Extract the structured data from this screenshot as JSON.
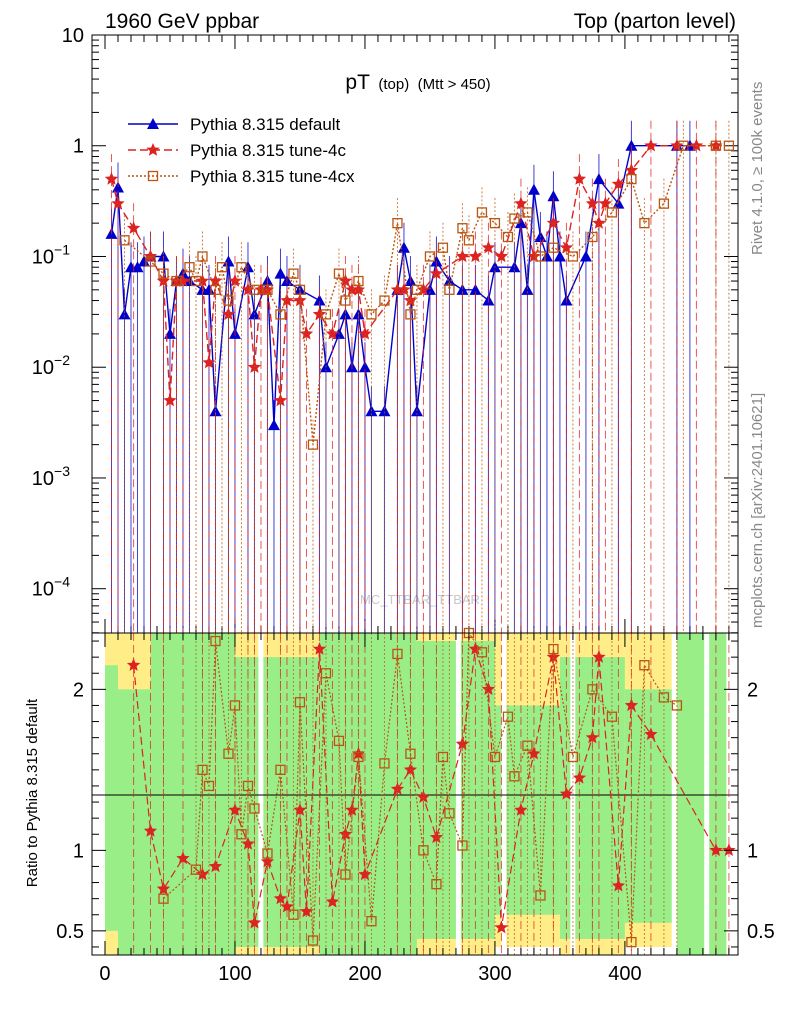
{
  "header": {
    "left": "1960 GeV ppbar",
    "right": "Top (parton level)"
  },
  "side_labels": {
    "rivet": "Rivet 4.1.0, ≥ 100k events",
    "mcplots": "mcplots.cern.ch [arXiv:2401.10621]"
  },
  "watermark": "MC_TTBAR_TTBAR",
  "chart_data": {
    "type": "line",
    "title": "pT",
    "title_parts": {
      "main": "pT",
      "sub": "(top)",
      "cut": "(Mtt > 450)"
    },
    "xlabel": "",
    "ylabel_ratio": "Ratio to Pythia 8.315 default",
    "xlim": [
      -10,
      487
    ],
    "ylim_main_log10": [
      -4.4,
      1.0
    ],
    "ylim_ratio": [
      0.35,
      2.35
    ],
    "x_ticks": [
      "0",
      "100",
      "200",
      "300",
      "400"
    ],
    "y_ticks_main": [
      "10^-4",
      "10^-3",
      "10^-2",
      "10^-1",
      "1",
      "10"
    ],
    "y_ticks_ratio": [
      "0.5",
      "1",
      "2"
    ],
    "legend": [
      {
        "name": "Pythia 8.315 default",
        "color": "#0000cc",
        "style": "solid",
        "marker": "triangle"
      },
      {
        "name": "Pythia 8.315 tune-4c",
        "color": "#dd2222",
        "style": "dashed",
        "marker": "star"
      },
      {
        "name": "Pythia 8.315 tune-4cx",
        "color": "#bb5511",
        "style": "dotted",
        "marker": "square"
      }
    ],
    "series": [
      {
        "name": "Pythia 8.315 default",
        "x": [
          5,
          10,
          15,
          20,
          25,
          30,
          35,
          45,
          50,
          55,
          60,
          65,
          75,
          80,
          85,
          95,
          100,
          110,
          115,
          125,
          130,
          135,
          140,
          150,
          165,
          170,
          180,
          185,
          190,
          195,
          200,
          205,
          215,
          225,
          230,
          235,
          240,
          250,
          255,
          265,
          275,
          285,
          295,
          300,
          315,
          320,
          325,
          330,
          335,
          340,
          345,
          350,
          355,
          370,
          380,
          395,
          405,
          440,
          450
        ],
        "y": [
          0.16,
          0.42,
          0.03,
          0.08,
          0.08,
          0.09,
          0.1,
          0.1,
          0.02,
          0.06,
          0.07,
          0.06,
          0.05,
          0.05,
          0.004,
          0.09,
          0.02,
          0.08,
          0.03,
          0.06,
          0.003,
          0.07,
          0.06,
          0.05,
          0.04,
          0.01,
          0.02,
          0.03,
          0.01,
          0.03,
          0.01,
          0.004,
          0.004,
          0.05,
          0.12,
          0.06,
          0.004,
          0.05,
          0.09,
          0.06,
          0.05,
          0.05,
          0.04,
          0.08,
          0.08,
          0.2,
          0.05,
          0.4,
          0.15,
          0.1,
          0.35,
          0.1,
          0.04,
          0.1,
          0.5,
          0.3,
          1.0,
          1.0,
          1.0
        ]
      },
      {
        "name": "Pythia 8.315 tune-4c",
        "x": [
          5,
          10,
          22,
          35,
          45,
          50,
          55,
          60,
          75,
          80,
          85,
          95,
          100,
          110,
          115,
          120,
          125,
          135,
          140,
          150,
          155,
          165,
          175,
          185,
          190,
          195,
          200,
          225,
          230,
          235,
          245,
          255,
          275,
          285,
          295,
          305,
          320,
          330,
          345,
          355,
          365,
          375,
          380,
          385,
          395,
          405,
          420,
          440,
          455,
          470
        ],
        "y": [
          0.5,
          0.3,
          0.18,
          0.1,
          0.06,
          0.005,
          0.06,
          0.06,
          0.06,
          0.011,
          0.06,
          0.03,
          0.06,
          0.05,
          0.01,
          0.05,
          0.05,
          0.005,
          0.04,
          0.04,
          0.02,
          0.03,
          0.02,
          0.06,
          0.05,
          0.05,
          0.02,
          0.05,
          0.05,
          0.04,
          0.05,
          0.07,
          0.1,
          0.1,
          0.12,
          0.1,
          0.3,
          0.1,
          0.2,
          0.12,
          0.5,
          0.3,
          0.2,
          0.3,
          0.45,
          0.6,
          1.0,
          1.0,
          1.0,
          1.0
        ]
      },
      {
        "name": "Pythia 8.315 tune-4cx",
        "x": [
          15,
          35,
          45,
          55,
          65,
          70,
          75,
          85,
          90,
          95,
          105,
          115,
          125,
          135,
          145,
          150,
          160,
          170,
          180,
          185,
          195,
          205,
          215,
          225,
          235,
          240,
          250,
          260,
          265,
          275,
          280,
          290,
          300,
          310,
          315,
          325,
          335,
          345,
          360,
          375,
          390,
          405,
          415,
          430,
          445,
          470,
          480
        ],
        "y": [
          0.14,
          0.09,
          0.07,
          0.06,
          0.08,
          0.06,
          0.1,
          0.05,
          0.08,
          0.04,
          0.08,
          0.05,
          0.05,
          0.03,
          0.07,
          0.05,
          0.002,
          0.03,
          0.07,
          0.04,
          0.06,
          0.03,
          0.04,
          0.2,
          0.03,
          0.05,
          0.1,
          0.12,
          0.05,
          0.18,
          0.14,
          0.25,
          0.2,
          0.15,
          0.22,
          0.25,
          0.1,
          0.12,
          0.1,
          0.15,
          0.25,
          0.5,
          0.2,
          0.3,
          1.0,
          1.0,
          1.0
        ]
      }
    ],
    "ratio_series": [
      {
        "name": "Pythia 8.315 tune-4c",
        "x": [
          22,
          35,
          45,
          60,
          75,
          85,
          100,
          110,
          115,
          125,
          135,
          140,
          150,
          155,
          165,
          175,
          185,
          190,
          195,
          200,
          225,
          235,
          245,
          255,
          275,
          285,
          295,
          305,
          320,
          330,
          345,
          355,
          365,
          375,
          380,
          395,
          405,
          420,
          470,
          480
        ],
        "y": [
          2.15,
          1.12,
          0.76,
          0.95,
          0.85,
          0.9,
          1.25,
          1.04,
          0.55,
          0.93,
          0.7,
          0.65,
          1.25,
          0.62,
          2.25,
          0.68,
          1.1,
          1.25,
          1.6,
          0.85,
          1.38,
          1.5,
          1.33,
          1.08,
          1.66,
          2.25,
          2.0,
          0.52,
          1.25,
          1.6,
          2.2,
          1.35,
          1.45,
          1.7,
          2.2,
          0.78,
          1.9,
          1.72,
          1.0,
          1.0
        ]
      },
      {
        "name": "Pythia 8.315 tune-4cx",
        "x": [
          45,
          70,
          75,
          80,
          85,
          95,
          100,
          105,
          110,
          115,
          125,
          135,
          145,
          150,
          160,
          170,
          180,
          185,
          195,
          205,
          215,
          225,
          235,
          245,
          255,
          260,
          265,
          275,
          280,
          290,
          300,
          310,
          315,
          325,
          335,
          345,
          360,
          375,
          390,
          405,
          415,
          430,
          440
        ],
        "y": [
          0.7,
          0.88,
          1.5,
          1.4,
          2.3,
          1.6,
          1.9,
          1.1,
          1.4,
          1.26,
          0.98,
          1.5,
          0.6,
          1.92,
          0.44,
          2.1,
          1.68,
          0.85,
          1.58,
          0.56,
          1.54,
          2.22,
          1.6,
          1.0,
          0.79,
          1.58,
          1.23,
          1.03,
          2.35,
          2.23,
          1.58,
          1.83,
          1.46,
          1.65,
          0.72,
          2.25,
          1.58,
          2.0,
          1.83,
          0.43,
          2.15,
          1.95,
          1.9
        ]
      }
    ],
    "uncertainty_bands": [
      {
        "x0": 0,
        "x1": 10,
        "inner": [
          0.5,
          2.15
        ],
        "outer": [
          0.35,
          2.35
        ]
      },
      {
        "x0": 10,
        "x1": 35,
        "inner": [
          0.35,
          2.0
        ],
        "outer": [
          0.35,
          2.35
        ]
      },
      {
        "x0": 35,
        "x1": 100,
        "inner": [
          0.35,
          2.35
        ],
        "outer": [
          0.35,
          2.35
        ]
      },
      {
        "x0": 100,
        "x1": 165,
        "inner": [
          0.4,
          2.2
        ],
        "outer": [
          0.35,
          2.35
        ]
      },
      {
        "x0": 165,
        "x1": 240,
        "inner": [
          0.35,
          2.35
        ],
        "outer": [
          0.35,
          2.35
        ]
      },
      {
        "x0": 240,
        "x1": 300,
        "inner": [
          0.45,
          2.3
        ],
        "outer": [
          0.35,
          2.35
        ]
      },
      {
        "x0": 300,
        "x1": 350,
        "inner": [
          0.6,
          1.9
        ],
        "outer": [
          0.4,
          2.35
        ]
      },
      {
        "x0": 350,
        "x1": 400,
        "inner": [
          0.45,
          2.2
        ],
        "outer": [
          0.35,
          2.35
        ]
      },
      {
        "x0": 400,
        "x1": 440,
        "inner": [
          0.55,
          2.0
        ],
        "outer": [
          0.4,
          2.35
        ]
      },
      {
        "x0": 440,
        "x1": 478,
        "inner": [
          0.35,
          2.35
        ],
        "outer": [
          0.35,
          2.35
        ]
      }
    ],
    "band_colors": {
      "inner": "#99ee88",
      "outer": "#ffee88"
    }
  }
}
